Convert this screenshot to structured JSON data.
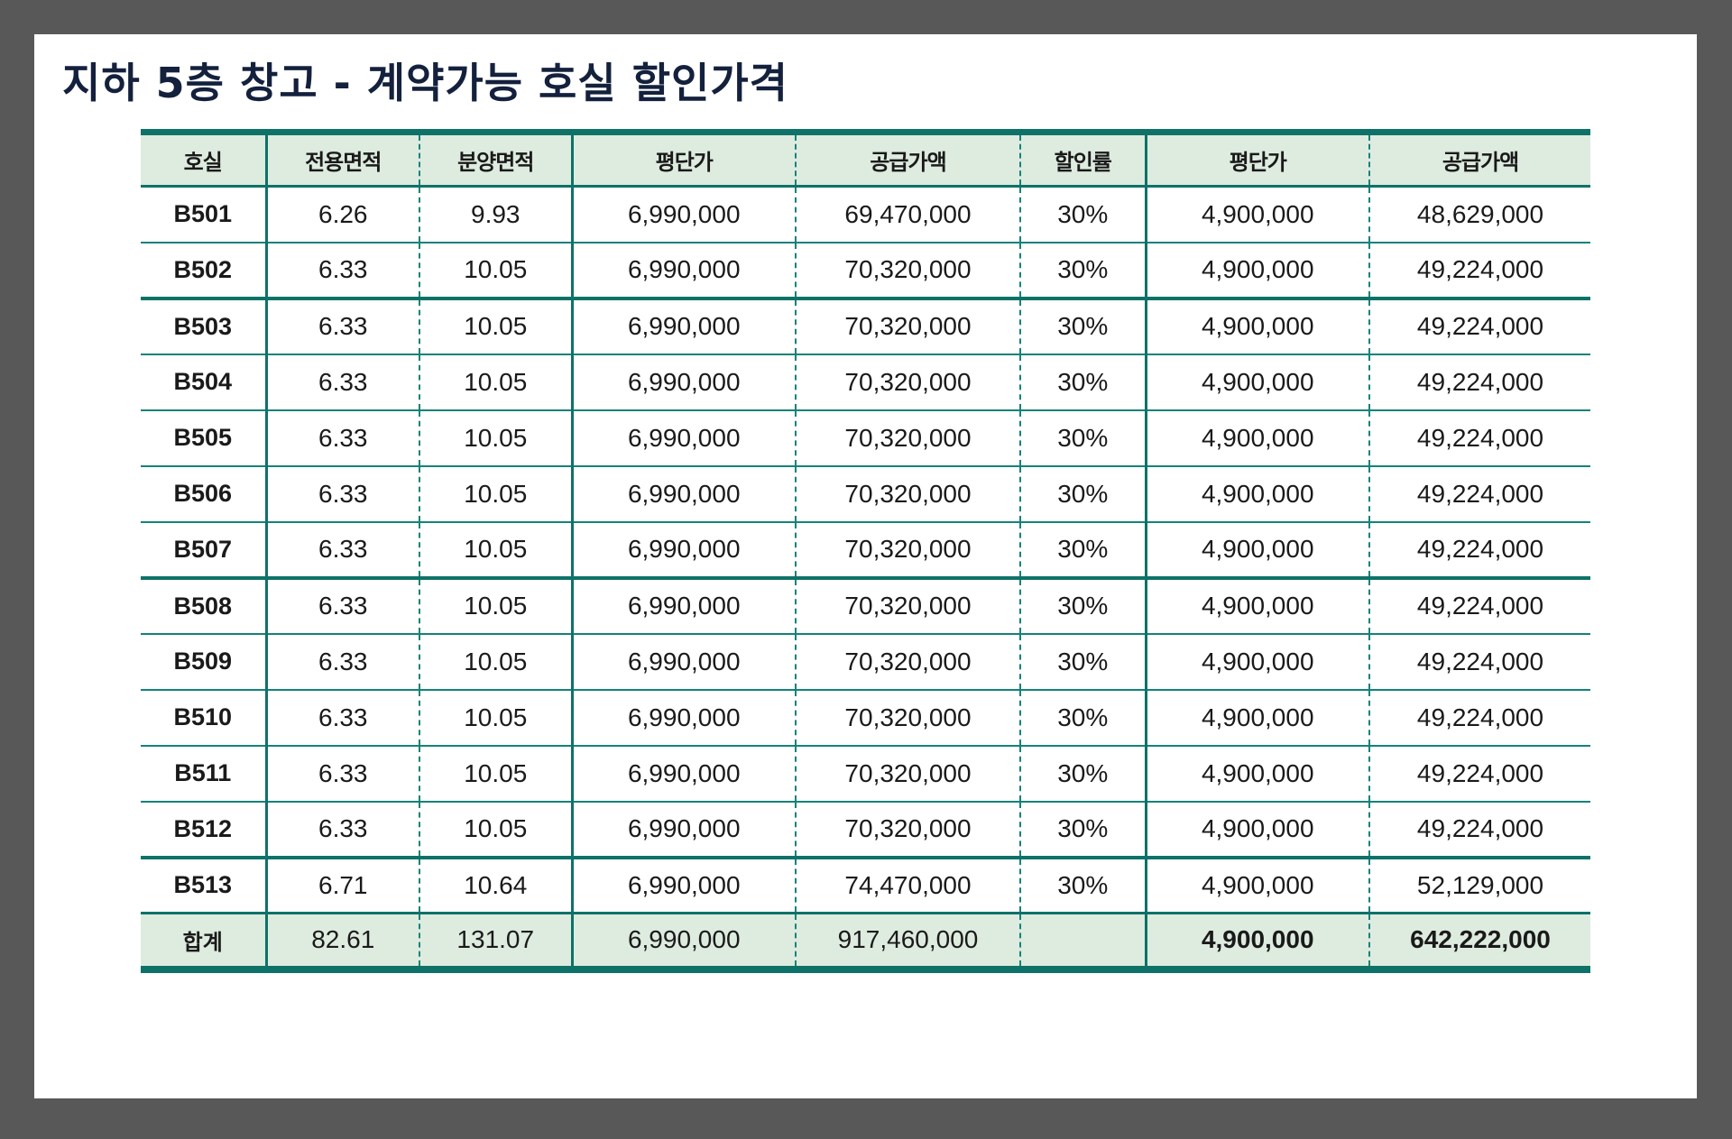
{
  "title": "지하 5층 창고 - 계약가능 호실 할인가격",
  "colors": {
    "accent": "#0e7268",
    "header_bg": "#deebdf",
    "frame": "#585858",
    "title": "#14213d"
  },
  "table": {
    "headers": [
      "호실",
      "전용면적",
      "분양면적",
      "평단가",
      "공급가액",
      "할인률",
      "평단가",
      "공급가액"
    ],
    "rows": [
      [
        "B501",
        "6.26",
        "9.93",
        "6,990,000",
        "69,470,000",
        "30%",
        "4,900,000",
        "48,629,000"
      ],
      [
        "B502",
        "6.33",
        "10.05",
        "6,990,000",
        "70,320,000",
        "30%",
        "4,900,000",
        "49,224,000"
      ],
      [
        "B503",
        "6.33",
        "10.05",
        "6,990,000",
        "70,320,000",
        "30%",
        "4,900,000",
        "49,224,000"
      ],
      [
        "B504",
        "6.33",
        "10.05",
        "6,990,000",
        "70,320,000",
        "30%",
        "4,900,000",
        "49,224,000"
      ],
      [
        "B505",
        "6.33",
        "10.05",
        "6,990,000",
        "70,320,000",
        "30%",
        "4,900,000",
        "49,224,000"
      ],
      [
        "B506",
        "6.33",
        "10.05",
        "6,990,000",
        "70,320,000",
        "30%",
        "4,900,000",
        "49,224,000"
      ],
      [
        "B507",
        "6.33",
        "10.05",
        "6,990,000",
        "70,320,000",
        "30%",
        "4,900,000",
        "49,224,000"
      ],
      [
        "B508",
        "6.33",
        "10.05",
        "6,990,000",
        "70,320,000",
        "30%",
        "4,900,000",
        "49,224,000"
      ],
      [
        "B509",
        "6.33",
        "10.05",
        "6,990,000",
        "70,320,000",
        "30%",
        "4,900,000",
        "49,224,000"
      ],
      [
        "B510",
        "6.33",
        "10.05",
        "6,990,000",
        "70,320,000",
        "30%",
        "4,900,000",
        "49,224,000"
      ],
      [
        "B511",
        "6.33",
        "10.05",
        "6,990,000",
        "70,320,000",
        "30%",
        "4,900,000",
        "49,224,000"
      ],
      [
        "B512",
        "6.33",
        "10.05",
        "6,990,000",
        "70,320,000",
        "30%",
        "4,900,000",
        "49,224,000"
      ],
      [
        "B513",
        "6.71",
        "10.64",
        "6,990,000",
        "74,470,000",
        "30%",
        "4,900,000",
        "52,129,000"
      ]
    ],
    "total": [
      "합계",
      "82.61",
      "131.07",
      "6,990,000",
      "917,460,000",
      "",
      "4,900,000",
      "642,222,000"
    ]
  }
}
